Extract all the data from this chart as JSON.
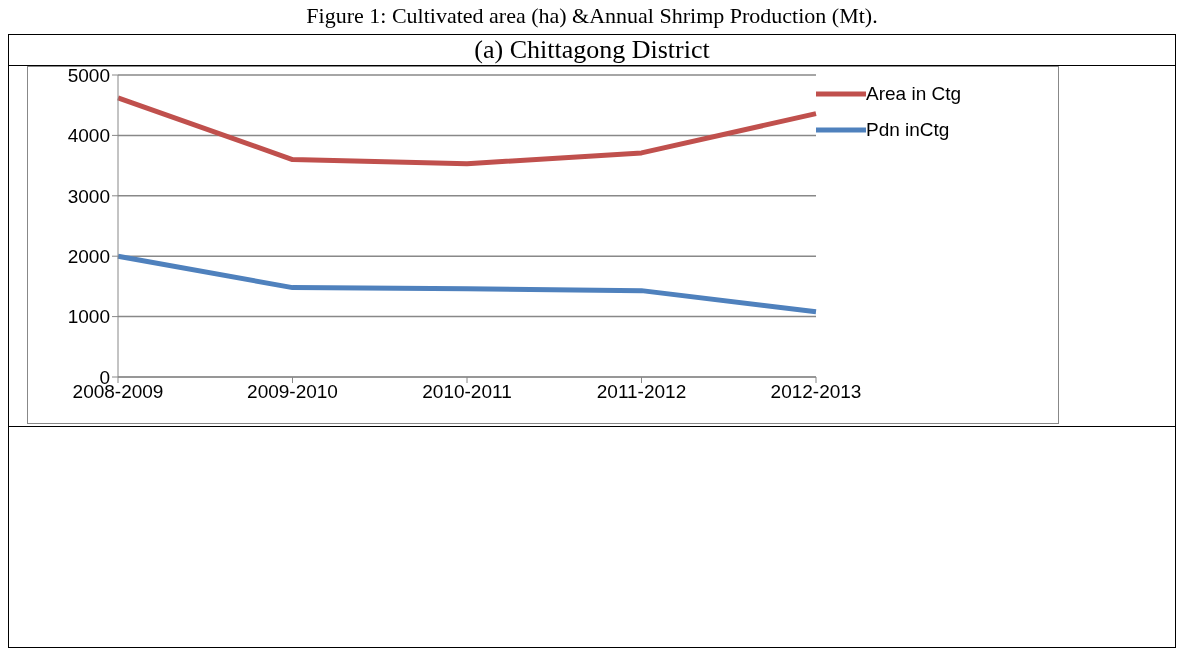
{
  "chart_data": {
    "type": "line",
    "title": "Figure 1: Cultivated area (ha) &Annual Shrimp Production (Mt).",
    "subtitle": "(a) Chittagong District",
    "categories": [
      "2008-2009",
      "2009-2010",
      "2010-2011",
      "2011-2012",
      "2012-2013"
    ],
    "series": [
      {
        "name": "Area in Ctg",
        "color": "#c0504d",
        "values": [
          4620,
          3600,
          3530,
          3710,
          4360
        ]
      },
      {
        "name": "Pdn inCtg",
        "color": "#4f81bd",
        "values": [
          2000,
          1480,
          1460,
          1430,
          1080
        ]
      }
    ],
    "ylim": [
      0,
      5000
    ],
    "yticks": [
      0,
      1000,
      2000,
      3000,
      4000,
      5000
    ],
    "grid": "y",
    "legend": "right",
    "marker": "none",
    "line_style": "solid"
  }
}
